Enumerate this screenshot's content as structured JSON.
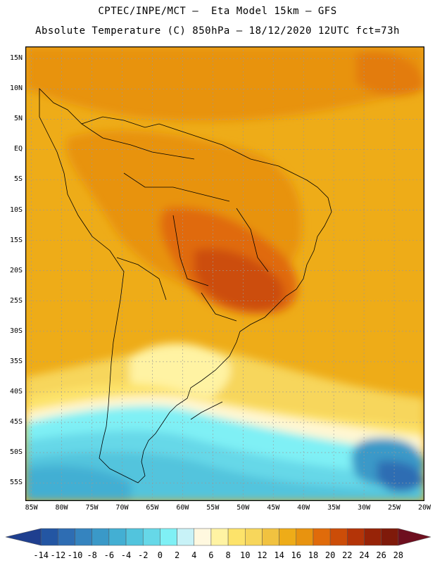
{
  "header": {
    "line1": "CPTEC/INPE/MCT –  Eta Model 15km – GFS",
    "line2": "Absolute Temperature (C) 850hPa – 18/12/2020 12UTC fct=73h"
  },
  "map": {
    "lon_range": [
      -86,
      -20
    ],
    "lat_range": [
      -58,
      17
    ],
    "lat_labels": [
      {
        "lat": 15,
        "text": "15N"
      },
      {
        "lat": 10,
        "text": "10N"
      },
      {
        "lat": 5,
        "text": "5N"
      },
      {
        "lat": 0,
        "text": "EQ"
      },
      {
        "lat": -5,
        "text": "5S"
      },
      {
        "lat": -10,
        "text": "10S"
      },
      {
        "lat": -15,
        "text": "15S"
      },
      {
        "lat": -20,
        "text": "20S"
      },
      {
        "lat": -25,
        "text": "25S"
      },
      {
        "lat": -30,
        "text": "30S"
      },
      {
        "lat": -35,
        "text": "35S"
      },
      {
        "lat": -40,
        "text": "40S"
      },
      {
        "lat": -45,
        "text": "45S"
      },
      {
        "lat": -50,
        "text": "50S"
      },
      {
        "lat": -55,
        "text": "55S"
      }
    ],
    "lon_labels": [
      {
        "lon": -85,
        "text": "85W"
      },
      {
        "lon": -80,
        "text": "80W"
      },
      {
        "lon": -75,
        "text": "75W"
      },
      {
        "lon": -70,
        "text": "70W"
      },
      {
        "lon": -65,
        "text": "65W"
      },
      {
        "lon": -60,
        "text": "60W"
      },
      {
        "lon": -55,
        "text": "55W"
      },
      {
        "lon": -50,
        "text": "50W"
      },
      {
        "lon": -45,
        "text": "45W"
      },
      {
        "lon": -40,
        "text": "40W"
      },
      {
        "lon": -35,
        "text": "35W"
      },
      {
        "lon": -30,
        "text": "30W"
      },
      {
        "lon": -25,
        "text": "25W"
      },
      {
        "lon": -20,
        "text": "20W"
      }
    ]
  },
  "colorbar": {
    "colors": [
      "#1f3f8f",
      "#2356a3",
      "#2e6db3",
      "#3584bf",
      "#3a99c8",
      "#43afd3",
      "#52c4dd",
      "#66d8e8",
      "#7ff0f5",
      "#c8f2f7",
      "#fff8df",
      "#fff3a3",
      "#fde36a",
      "#f7d65b",
      "#f1c240",
      "#eeac18",
      "#e8930f",
      "#e06b0a",
      "#cc4d08",
      "#b43408",
      "#972307",
      "#7f1a0a",
      "#6e0f1f"
    ],
    "labels": [
      "-14",
      "-12",
      "-10",
      "-8",
      "-6",
      "-4",
      "-2",
      "0",
      "2",
      "4",
      "6",
      "8",
      "10",
      "12",
      "14",
      "16",
      "18",
      "20",
      "22",
      "24",
      "26",
      "28"
    ]
  }
}
